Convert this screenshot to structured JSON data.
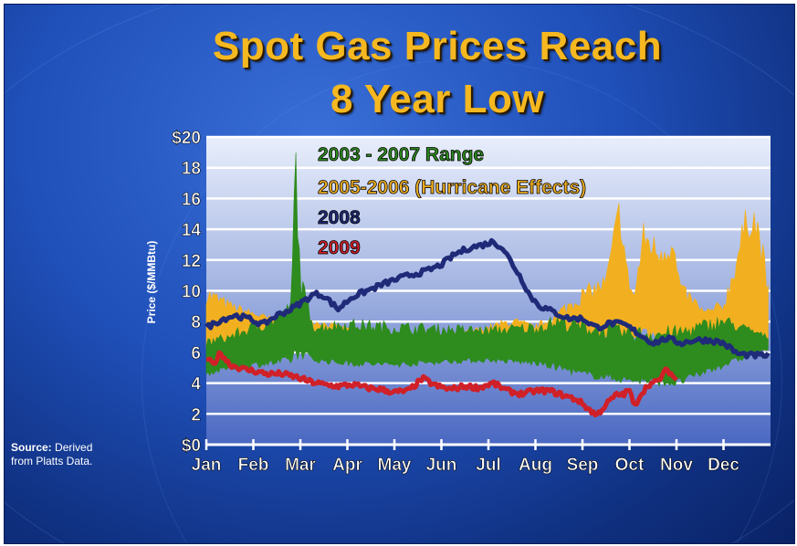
{
  "slide": {
    "title_line1": "Spot Gas Prices Reach",
    "title_line2": "8 Year Low",
    "source_label": "Source:",
    "source_text_line1": "Derived",
    "source_text_line2": "from Platts Data."
  },
  "chart_data": {
    "type": "line",
    "ylabel": "Price ($/MMBtu)",
    "xlabel": "",
    "ylim": [
      0,
      20
    ],
    "yticks": [
      "$0",
      "2",
      "4",
      "6",
      "8",
      "10",
      "12",
      "14",
      "16",
      "18",
      "$20"
    ],
    "ytick_values": [
      0,
      2,
      4,
      6,
      8,
      10,
      12,
      14,
      16,
      18,
      20
    ],
    "categories": [
      "Jan",
      "Feb",
      "Mar",
      "Apr",
      "May",
      "Jun",
      "Jul",
      "Aug",
      "Sep",
      "Oct",
      "Nov",
      "Dec"
    ],
    "grid": true,
    "legend_placement": "top-left inside plot",
    "colors": {
      "range_2003_2007": "#2e8b1e",
      "hurricane_2005_2006": "#f2b020",
      "y2008": "#1f2a78",
      "y2009": "#d02028",
      "plot_bg_top": "#e6ecfa",
      "plot_bg_bottom": "#4f6fc8"
    },
    "series": [
      {
        "name": "2003 - 2007 Range",
        "kind": "band",
        "x": [
          0.0,
          0.5,
          1.0,
          1.4,
          1.8,
          1.9,
          2.0,
          2.3,
          3.0,
          4.0,
          5.0,
          6.0,
          7.0,
          7.5,
          8.0,
          9.0,
          10.0,
          11.0,
          11.95
        ],
        "low": [
          4.6,
          5.0,
          5.2,
          5.3,
          5.5,
          5.8,
          6.0,
          5.5,
          5.3,
          5.2,
          5.4,
          5.5,
          5.3,
          5.0,
          4.6,
          4.2,
          4.0,
          5.2,
          6.2
        ],
        "high": [
          6.6,
          7.0,
          7.6,
          8.0,
          8.8,
          18.5,
          10.5,
          7.6,
          7.8,
          7.6,
          7.5,
          7.4,
          7.6,
          8.0,
          7.6,
          7.2,
          7.2,
          8.0,
          7.0
        ]
      },
      {
        "name": "2005-2006 (Hurricane Effects)",
        "kind": "band",
        "x": [
          0.0,
          0.5,
          1.0,
          1.5,
          2.0,
          3.0,
          4.0,
          5.0,
          6.0,
          6.5,
          7.0,
          7.5,
          7.9,
          8.2,
          8.5,
          8.8,
          8.95,
          9.1,
          9.3,
          9.6,
          9.9,
          10.1,
          10.3,
          10.6,
          11.0,
          11.2,
          11.4,
          11.6,
          11.8,
          11.95
        ],
        "low": [
          6.0,
          6.8,
          7.2,
          6.5,
          6.8,
          6.5,
          6.3,
          6.5,
          6.2,
          6.0,
          6.3,
          6.0,
          6.0,
          6.5,
          6.8,
          6.5,
          6.5,
          7.0,
          7.5,
          7.0,
          6.5,
          7.2,
          6.8,
          6.5,
          6.5,
          6.8,
          7.0,
          6.8,
          6.5,
          6.5
        ],
        "high": [
          9.8,
          9.0,
          8.5,
          8.0,
          8.2,
          7.5,
          7.2,
          7.0,
          7.6,
          8.0,
          7.6,
          8.5,
          9.5,
          10.0,
          10.5,
          15.2,
          11.0,
          9.5,
          13.5,
          12.5,
          13.0,
          10.0,
          9.5,
          8.5,
          9.0,
          11.0,
          13.5,
          15.2,
          13.0,
          9.8
        ]
      },
      {
        "name": "2008",
        "kind": "line",
        "x": [
          0.0,
          0.3,
          0.6,
          0.9,
          1.2,
          1.5,
          1.8,
          2.0,
          2.3,
          2.5,
          2.8,
          3.1,
          3.5,
          3.9,
          4.3,
          4.7,
          5.0,
          5.3,
          5.6,
          5.9,
          6.1,
          6.3,
          6.5,
          6.7,
          6.9,
          7.1,
          7.4,
          7.7,
          8.0,
          8.3,
          8.6,
          8.9,
          9.2,
          9.5,
          9.8,
          10.1,
          10.4,
          10.7,
          11.0,
          11.3,
          11.6,
          11.95
        ],
        "y": [
          7.6,
          8.1,
          8.4,
          8.2,
          7.8,
          8.4,
          8.8,
          9.2,
          9.8,
          9.7,
          8.8,
          9.6,
          10.1,
          10.6,
          11.0,
          11.3,
          11.7,
          12.4,
          12.8,
          13.0,
          13.2,
          12.8,
          11.8,
          10.8,
          9.6,
          9.0,
          8.6,
          8.2,
          8.2,
          7.6,
          7.9,
          7.8,
          7.2,
          6.6,
          6.9,
          6.6,
          6.8,
          6.8,
          6.6,
          5.9,
          5.8,
          5.8
        ]
      },
      {
        "name": "2009",
        "kind": "line",
        "x": [
          0.0,
          0.15,
          0.3,
          0.5,
          0.8,
          1.0,
          1.3,
          1.6,
          1.9,
          2.2,
          2.5,
          2.8,
          3.1,
          3.4,
          3.7,
          4.0,
          4.3,
          4.6,
          4.9,
          5.2,
          5.5,
          5.8,
          6.1,
          6.4,
          6.7,
          7.0,
          7.3,
          7.6,
          7.9,
          8.1,
          8.3,
          8.5,
          8.7,
          8.9,
          9.0,
          9.1,
          9.2,
          9.4,
          9.6,
          9.8,
          10.0
        ],
        "y": [
          5.6,
          5.2,
          6.0,
          5.2,
          4.9,
          4.8,
          4.6,
          4.6,
          4.4,
          4.1,
          3.9,
          3.8,
          3.9,
          3.7,
          3.6,
          3.4,
          3.5,
          4.3,
          3.8,
          3.6,
          3.8,
          3.7,
          4.0,
          3.5,
          3.3,
          3.5,
          3.5,
          3.2,
          2.9,
          2.4,
          1.9,
          2.6,
          3.2,
          3.3,
          3.6,
          2.4,
          3.1,
          3.9,
          4.1,
          4.9,
          4.2
        ]
      }
    ]
  }
}
